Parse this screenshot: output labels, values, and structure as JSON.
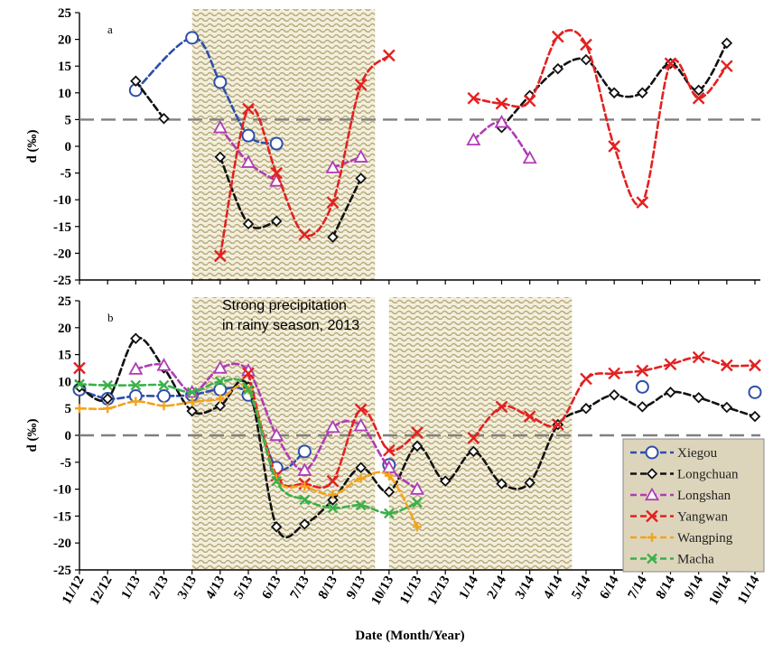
{
  "chart_data": [
    {
      "panel": "a",
      "type": "line",
      "ylabel": "d (‰)",
      "ylim": [
        -25,
        25
      ],
      "yticks": [
        25,
        20,
        15,
        10,
        5,
        0,
        -5,
        -10,
        -15,
        -20,
        -25
      ],
      "reference_line": 5,
      "shaded_x": [
        [
          4,
          10.5
        ]
      ],
      "series": [
        {
          "id": "xiegou",
          "color": "#2e4fa8",
          "marker": "circle",
          "points": [
            [
              2,
              10.5
            ],
            [
              4,
              20.3
            ],
            [
              5,
              12
            ],
            [
              6,
              2
            ],
            [
              7,
              0.5
            ]
          ]
        },
        {
          "id": "longchuan",
          "color": "#111111",
          "marker": "diamond",
          "points": [
            [
              2,
              12.2
            ],
            [
              3,
              5.2
            ],
            null,
            [
              5,
              -2
            ],
            [
              6,
              -14.5
            ],
            [
              7,
              -14
            ],
            null,
            [
              9,
              -17
            ],
            [
              10,
              -6
            ],
            null,
            [
              15,
              3.5
            ],
            [
              16,
              9.5
            ],
            [
              17,
              14.5
            ],
            [
              18,
              16.2
            ],
            [
              19,
              10
            ],
            [
              20,
              10
            ],
            [
              21,
              15.5
            ],
            [
              22,
              10.5
            ],
            [
              23,
              19.3
            ]
          ]
        },
        {
          "id": "longshan",
          "color": "#b03cb5",
          "marker": "triangle",
          "points": [
            [
              5,
              3.5
            ],
            [
              6,
              -3
            ],
            [
              7,
              -6.5
            ],
            null,
            [
              9,
              -4
            ],
            [
              10,
              -2
            ],
            null,
            [
              14,
              1.2
            ],
            [
              15,
              4.5
            ],
            [
              16,
              -2.2
            ]
          ]
        },
        {
          "id": "yangwan",
          "color": "#e32121",
          "marker": "cross",
          "points": [
            [
              5,
              -20.5
            ],
            [
              6,
              7
            ],
            [
              7,
              -5
            ],
            [
              8,
              -16.5
            ],
            [
              9,
              -10.5
            ],
            [
              10,
              11.5
            ],
            [
              11,
              17
            ],
            null,
            [
              14,
              9
            ],
            [
              15,
              8
            ],
            [
              16,
              8.5
            ],
            [
              17,
              20.5
            ],
            [
              18,
              19
            ],
            [
              19,
              0
            ],
            [
              20,
              -10.5
            ],
            [
              21,
              15.5
            ],
            [
              22,
              9
            ],
            [
              23,
              15
            ]
          ]
        }
      ]
    },
    {
      "panel": "b",
      "type": "line",
      "xlabel": "Date (Month/Year)",
      "ylabel": "d (‰)",
      "ylim": [
        -25,
        25
      ],
      "yticks": [
        25,
        20,
        15,
        10,
        5,
        0,
        -5,
        -10,
        -15,
        -20,
        -25
      ],
      "reference_line": 0,
      "x_categories": [
        "11/12",
        "12/12",
        "1/13",
        "2/13",
        "3/13",
        "4/13",
        "5/13",
        "6/13",
        "7/13",
        "8/13",
        "9/13",
        "10/13",
        "11/13",
        "12/13",
        "1/14",
        "2/14",
        "3/14",
        "4/14",
        "5/14",
        "6/14",
        "7/14",
        "8/14",
        "9/14",
        "10/14",
        "11/14"
      ],
      "shaded_x": [
        [
          4,
          10.5
        ],
        [
          11,
          17.5
        ]
      ],
      "annotation": [
        "Strong precipitation",
        "in rainy season, 2013"
      ],
      "legend_position": "bottom-right",
      "series": [
        {
          "id": "xiegou",
          "name": "Xiegou",
          "color": "#2e4fa8",
          "marker": "circle",
          "points": [
            [
              0,
              8.5
            ],
            [
              1,
              6.8
            ],
            [
              2,
              7.3
            ],
            [
              3,
              7.3
            ],
            [
              4,
              7.5
            ],
            [
              5,
              8.5
            ],
            [
              6,
              7.5
            ],
            [
              7,
              -6
            ],
            [
              8,
              -3
            ],
            null,
            [
              11,
              -5.5
            ],
            null,
            [
              20,
              9
            ],
            null,
            [
              24,
              8
            ]
          ]
        },
        {
          "id": "longchuan",
          "name": "Longchuan",
          "color": "#111111",
          "marker": "diamond",
          "points": [
            [
              0,
              9
            ],
            [
              1,
              6.8
            ],
            [
              2,
              18
            ],
            [
              3,
              12.5
            ],
            [
              4,
              4.5
            ],
            [
              5,
              5.5
            ],
            [
              6,
              9
            ],
            [
              7,
              -17
            ],
            [
              8,
              -16.5
            ],
            [
              9,
              -12
            ],
            [
              10,
              -6
            ],
            [
              11,
              -10.5
            ],
            [
              12,
              -2
            ],
            [
              13,
              -8.5
            ],
            [
              14,
              -3
            ],
            [
              15,
              -9
            ],
            [
              16,
              -8.8
            ],
            [
              17,
              2
            ],
            [
              18,
              5
            ],
            [
              19,
              7.5
            ],
            [
              20,
              5.3
            ],
            [
              21,
              8
            ],
            [
              22,
              7
            ],
            [
              23,
              5.2
            ],
            [
              24,
              3.5
            ]
          ]
        },
        {
          "id": "longshan",
          "name": "Longshan",
          "color": "#b03cb5",
          "marker": "triangle",
          "points": [
            [
              2,
              12.3
            ],
            [
              3,
              13
            ],
            [
              4,
              8
            ],
            [
              5,
              12.5
            ],
            [
              6,
              12
            ],
            [
              7,
              0
            ],
            [
              8,
              -6.5
            ],
            [
              9,
              1.5
            ],
            [
              10,
              1.8
            ],
            [
              11,
              -6
            ],
            [
              12,
              -10
            ]
          ]
        },
        {
          "id": "yangwan",
          "name": "Yangwan",
          "color": "#e32121",
          "marker": "cross",
          "points": [
            [
              0,
              12.5
            ],
            null,
            [
              6,
              11.5
            ],
            [
              7,
              -7.5
            ],
            [
              8,
              -9
            ],
            [
              9,
              -8.5
            ],
            [
              10,
              4.8
            ],
            [
              11,
              -2.8
            ],
            [
              12,
              0.5
            ],
            null,
            [
              14,
              -0.5
            ],
            [
              15,
              5.3
            ],
            [
              16,
              3.5
            ],
            [
              17,
              2
            ],
            [
              18,
              10.5
            ],
            [
              19,
              11.5
            ],
            [
              20,
              12
            ],
            [
              21,
              13.2
            ],
            [
              22,
              14.5
            ],
            [
              23,
              13
            ],
            [
              24,
              13
            ]
          ]
        },
        {
          "id": "wangping",
          "name": "Wangping",
          "color": "#f5a31c",
          "marker": "plus",
          "points": [
            [
              0,
              5
            ],
            [
              1,
              5
            ],
            [
              2,
              6.3
            ],
            [
              3,
              5.5
            ],
            [
              4,
              6.2
            ],
            [
              5,
              6.8
            ],
            [
              6,
              8.5
            ],
            [
              7,
              -8
            ],
            [
              8,
              -9.5
            ],
            [
              9,
              -11
            ],
            [
              10,
              -8
            ],
            [
              11,
              -7.5
            ],
            [
              12,
              -17
            ]
          ]
        },
        {
          "id": "macha",
          "name": "Macha",
          "color": "#3bb04a",
          "marker": "x",
          "points": [
            [
              0,
              9.5
            ],
            [
              1,
              9.3
            ],
            [
              2,
              9.3
            ],
            [
              3,
              9.3
            ],
            [
              4,
              8
            ],
            [
              5,
              10
            ],
            [
              6,
              8.5
            ],
            [
              7,
              -8.5
            ],
            [
              8,
              -12
            ],
            [
              9,
              -13.5
            ],
            [
              10,
              -13
            ],
            [
              11,
              -14.5
            ],
            [
              12,
              -12.5
            ]
          ]
        }
      ]
    }
  ]
}
